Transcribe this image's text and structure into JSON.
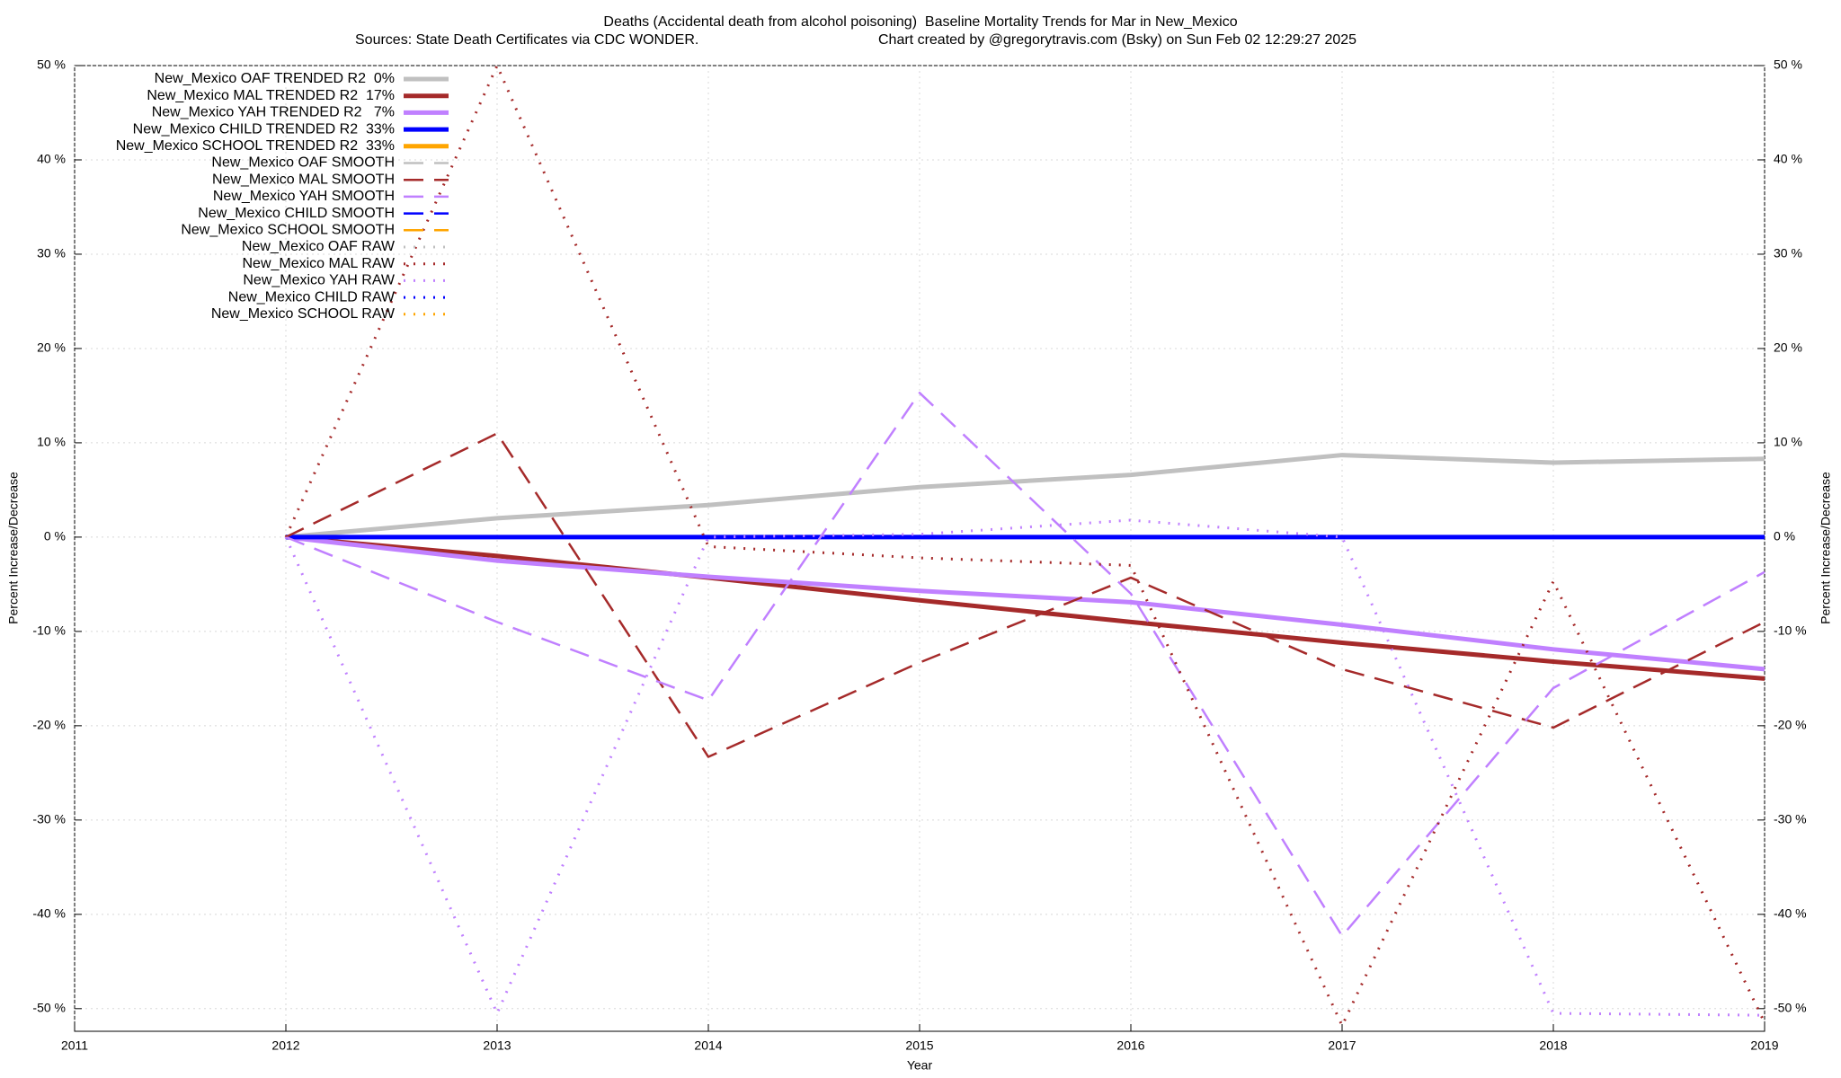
{
  "chart_data": {
    "type": "line",
    "title": "Deaths (Accidental death from alcohol poisoning)  Baseline Mortality Trends for Mar in New_Mexico",
    "subtitle": [
      "Sources: State Death Certificates via CDC WONDER.",
      "Chart created by @gregorytravis.com (Bsky) on Sun Feb 02 12:29:27 2025"
    ],
    "xlabel": "Year",
    "ylabel": "Percent Increase/Decrease",
    "x": [
      2012,
      2013,
      2014,
      2015,
      2016,
      2017,
      2018,
      2019
    ],
    "xlim": [
      2011,
      2019
    ],
    "xticks": [
      2011,
      2012,
      2013,
      2014,
      2015,
      2016,
      2017,
      2018,
      2019
    ],
    "ylim": [
      -52.4,
      50
    ],
    "yticks": [
      {
        "value": -50,
        "label": "-50 %"
      },
      {
        "value": -40,
        "label": "-40 %"
      },
      {
        "value": -30,
        "label": "-30 %"
      },
      {
        "value": -20,
        "label": "-20 %"
      },
      {
        "value": -10,
        "label": "-10 %"
      },
      {
        "value": 0,
        "label": "0 %"
      },
      {
        "value": 10,
        "label": "10 %"
      },
      {
        "value": 20,
        "label": "20 %"
      },
      {
        "value": 30,
        "label": "30 %"
      },
      {
        "value": 40,
        "label": "40 %"
      },
      {
        "value": 50,
        "label": "50 %"
      }
    ],
    "grid": true,
    "legend": "top-left",
    "series": [
      {
        "name": "New_Mexico OAF TRENDED R2  0%",
        "color": "#c0c0c0",
        "dash": "solid",
        "values": [
          0,
          2,
          3.4,
          5.3,
          6.6,
          8.7,
          7.9,
          8.3
        ]
      },
      {
        "name": "New_Mexico MAL TRENDED R2  17%",
        "color": "#a52a2a",
        "dash": "solid",
        "values": [
          0,
          -2,
          -4.3,
          -6.7,
          -9,
          -11.2,
          -13.2,
          -15
        ]
      },
      {
        "name": "New_Mexico YAH TRENDED R2   7%",
        "color": "#c080ff",
        "dash": "solid",
        "values": [
          0,
          -2.5,
          -4.2,
          -5.7,
          -6.9,
          -9.3,
          -11.9,
          -14
        ]
      },
      {
        "name": "New_Mexico CHILD TRENDED R2  33%",
        "color": "#0000ff",
        "dash": "solid",
        "values": [
          0,
          0,
          0,
          0,
          0,
          0,
          0,
          0
        ]
      },
      {
        "name": "New_Mexico SCHOOL TRENDED R2  33%",
        "color": "#ffa500",
        "dash": "solid",
        "values": [
          null,
          null,
          null,
          null,
          null,
          null,
          null,
          null
        ]
      },
      {
        "name": "New_Mexico OAF SMOOTH",
        "color": "#c0c0c0",
        "dash": "dashed",
        "values": [
          null,
          null,
          null,
          null,
          null,
          null,
          null,
          null
        ]
      },
      {
        "name": "New_Mexico MAL SMOOTH",
        "color": "#a52a2a",
        "dash": "dashed",
        "values": [
          0,
          11,
          -23.3,
          -13.3,
          -4.3,
          -14,
          -20.2,
          -9
        ]
      },
      {
        "name": "New_Mexico YAH SMOOTH",
        "color": "#c080ff",
        "dash": "dashed",
        "values": [
          0,
          -9,
          -17.3,
          15.3,
          -6,
          -42.3,
          -16,
          -3.7
        ]
      },
      {
        "name": "New_Mexico CHILD SMOOTH",
        "color": "#0000ff",
        "dash": "dashed",
        "values": [
          null,
          null,
          null,
          null,
          null,
          null,
          null,
          null
        ]
      },
      {
        "name": "New_Mexico SCHOOL SMOOTH",
        "color": "#ffa500",
        "dash": "dashed",
        "values": [
          null,
          null,
          null,
          null,
          null,
          null,
          null,
          null
        ]
      },
      {
        "name": "New_Mexico OAF RAW",
        "color": "#c0c0c0",
        "dash": "dotted",
        "values": [
          null,
          null,
          null,
          null,
          null,
          null,
          null,
          null
        ]
      },
      {
        "name": "New_Mexico MAL RAW",
        "color": "#a52a2a",
        "dash": "dotted",
        "values": [
          0,
          50,
          -1,
          -2.2,
          -3,
          -51.8,
          -4.7,
          -51.5
        ]
      },
      {
        "name": "New_Mexico YAH RAW",
        "color": "#c080ff",
        "dash": "dotted",
        "values": [
          0,
          -50.5,
          0,
          0.3,
          1.8,
          0,
          -50.5,
          -50.7
        ]
      },
      {
        "name": "New_Mexico CHILD RAW",
        "color": "#0000ff",
        "dash": "dotted",
        "values": [
          null,
          null,
          null,
          null,
          null,
          null,
          null,
          null
        ]
      },
      {
        "name": "New_Mexico SCHOOL RAW",
        "color": "#ffa500",
        "dash": "dotted",
        "values": [
          null,
          null,
          null,
          null,
          null,
          null,
          null,
          null
        ]
      }
    ]
  }
}
